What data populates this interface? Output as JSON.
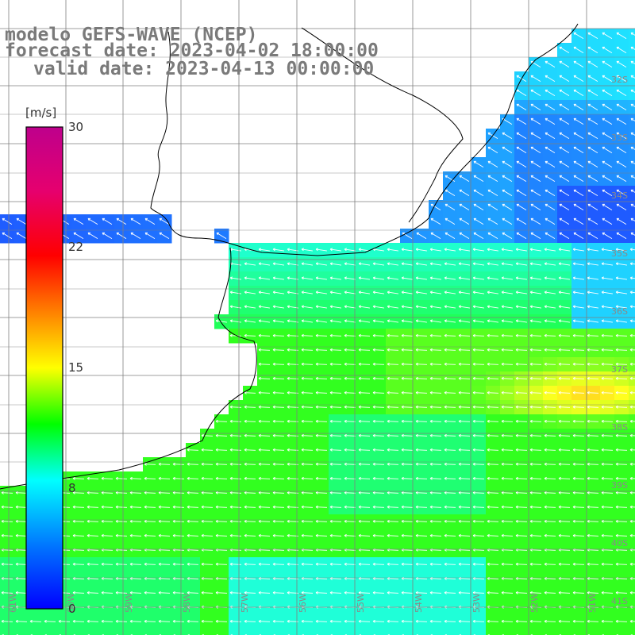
{
  "header": {
    "line1": "modelo GEFS-WAVE (NCEP)",
    "line2": "forecast date: 2023-04-02 18:00:00",
    "line3": "valid date: 2023-04-13 00:00:00"
  },
  "colorbar": {
    "unit": "[m/s]",
    "ticks": [
      "30",
      "22",
      "15",
      "8",
      "0"
    ],
    "min": 0,
    "max": 30
  },
  "lat_labels": [
    "32S",
    "33S",
    "34S",
    "35S",
    "36S",
    "37S",
    "38S",
    "39S",
    "40S",
    "41S"
  ],
  "lon_labels": [
    "61W",
    "60W",
    "59W",
    "58W",
    "57W",
    "56W",
    "55W",
    "54W",
    "53W",
    "52W",
    "51W"
  ],
  "map": {
    "variable": "wind speed and direction",
    "dominant_wind_direction": "from east (arrows pointing west)",
    "max_speed_region": "around 37S-38S, 51W-52W (yellow, about 15-17 m/s)",
    "min_speed_region": "near 34S-35S, 52W (dark blue)"
  },
  "colors": {
    "land": "#ffffff",
    "grid": "#7f7f7f",
    "coast": "#000000",
    "title": "#7a7a7a"
  }
}
